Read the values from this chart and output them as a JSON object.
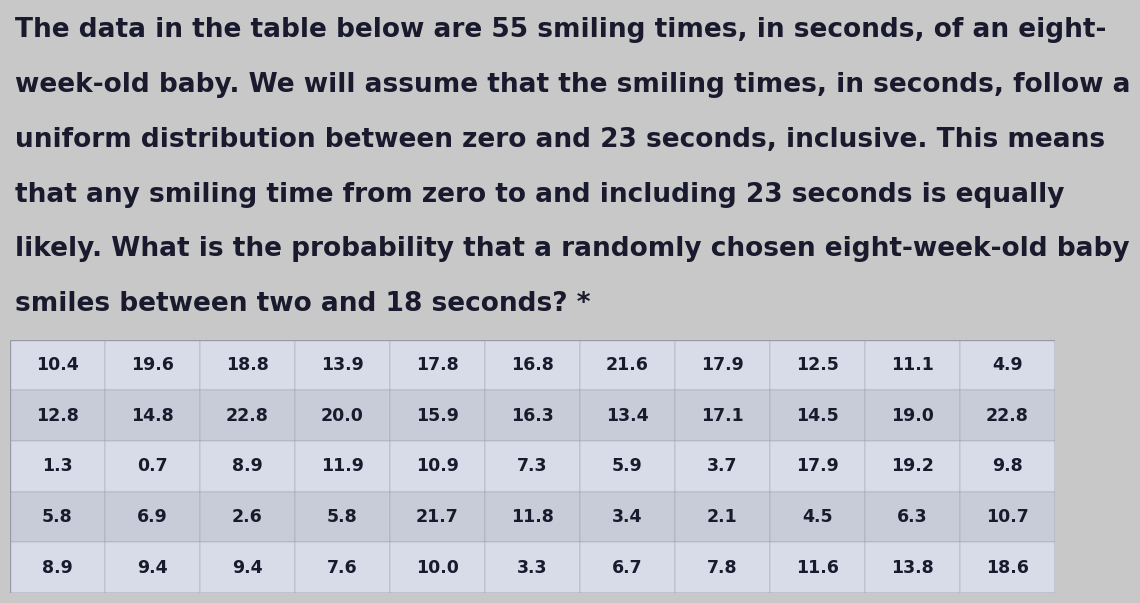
{
  "title_lines": [
    "The data in the table below are 55 smiling times, in seconds, of an eight-",
    "week-old baby. We will assume that the smiling times, in seconds, follow a",
    "uniform distribution between zero and 23 seconds, inclusive. This means",
    "that any smiling time from zero to and including 23 seconds is equally",
    "likely. What is the probability that a randomly chosen eight-week-old baby",
    "smiles between two and 18 seconds? *"
  ],
  "table_data": [
    [
      "10.4",
      "19.6",
      "18.8",
      "13.9",
      "17.8",
      "16.8",
      "21.6",
      "17.9",
      "12.5",
      "11.1",
      "4.9"
    ],
    [
      "12.8",
      "14.8",
      "22.8",
      "20.0",
      "15.9",
      "16.3",
      "13.4",
      "17.1",
      "14.5",
      "19.0",
      "22.8"
    ],
    [
      "1.3",
      "0.7",
      "8.9",
      "11.9",
      "10.9",
      "7.3",
      "5.9",
      "3.7",
      "17.9",
      "19.2",
      "9.8"
    ],
    [
      "5.8",
      "6.9",
      "2.6",
      "5.8",
      "21.7",
      "11.8",
      "3.4",
      "2.1",
      "4.5",
      "6.3",
      "10.7"
    ],
    [
      "8.9",
      "9.4",
      "9.4",
      "7.6",
      "10.0",
      "3.3",
      "6.7",
      "7.8",
      "11.6",
      "13.8",
      "18.6"
    ]
  ],
  "bg_color": "#c8c8c8",
  "row_colors": [
    "#d8dce8",
    "#c8ccd8"
  ],
  "table_border_color": "#9999aa",
  "text_color": "#1a1a2e",
  "title_font_size": 19,
  "table_font_size": 12.5,
  "n_rows": 5,
  "n_cols": 11
}
